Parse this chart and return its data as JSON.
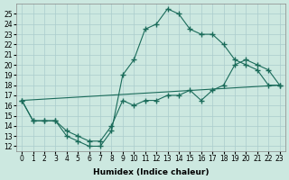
{
  "xlabel": "Humidex (Indice chaleur)",
  "bg_color": "#cce8e0",
  "grid_color": "#aacccc",
  "line_color": "#1a6b5a",
  "xlim": [
    -0.5,
    23.5
  ],
  "ylim": [
    11.5,
    26.0
  ],
  "yticks": [
    12,
    13,
    14,
    15,
    16,
    17,
    18,
    19,
    20,
    21,
    22,
    23,
    24,
    25
  ],
  "xticks": [
    0,
    1,
    2,
    3,
    4,
    5,
    6,
    7,
    8,
    9,
    10,
    11,
    12,
    13,
    14,
    15,
    16,
    17,
    18,
    19,
    20,
    21,
    22,
    23
  ],
  "line1_x": [
    0,
    1,
    2,
    3,
    4,
    5,
    6,
    7,
    8,
    9,
    10,
    11,
    12,
    13,
    14,
    15,
    16,
    17,
    18,
    19,
    20,
    21,
    22,
    23
  ],
  "line1_y": [
    16.5,
    14.5,
    14.5,
    14.5,
    13.0,
    12.5,
    12.0,
    12.0,
    13.5,
    19.0,
    20.5,
    23.5,
    24.0,
    25.5,
    25.0,
    23.5,
    23.0,
    23.0,
    22.0,
    20.5,
    20.0,
    19.5,
    18.0,
    18.0
  ],
  "line2_x": [
    0,
    1,
    2,
    3,
    4,
    5,
    6,
    7,
    8,
    9,
    10,
    11,
    12,
    13,
    14,
    15,
    16,
    17,
    18,
    19,
    20,
    21,
    22,
    23
  ],
  "line2_y": [
    16.5,
    14.5,
    14.5,
    14.5,
    13.5,
    13.0,
    12.5,
    12.5,
    14.0,
    16.5,
    16.0,
    16.5,
    16.5,
    17.0,
    17.0,
    17.5,
    16.5,
    17.5,
    18.0,
    20.0,
    20.5,
    20.0,
    19.5,
    18.0
  ],
  "line3_x": [
    0,
    23
  ],
  "line3_y": [
    16.5,
    18.0
  ]
}
